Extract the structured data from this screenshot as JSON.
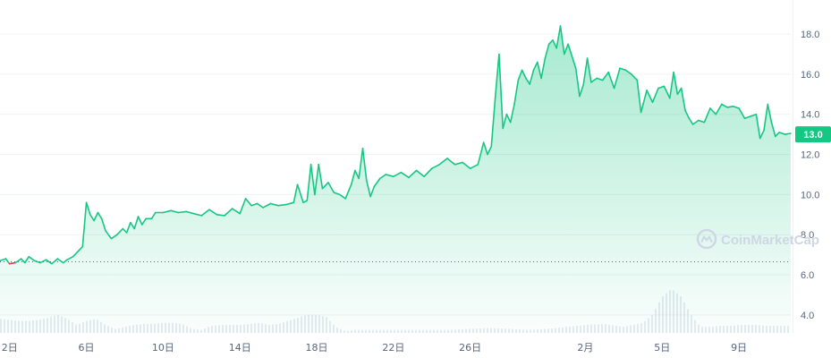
{
  "chart_data": {
    "type": "line",
    "title": "",
    "xlabel": "",
    "ylabel": "",
    "ylim": [
      3.1,
      19.7
    ],
    "y_ticks": [
      4.0,
      6.0,
      8.0,
      10.0,
      12.0,
      14.0,
      16.0,
      18.0
    ],
    "y_tick_labels": [
      "4.0",
      "6.0",
      "8.0",
      "10.0",
      "12.0",
      "14.0",
      "16.0",
      "18.0"
    ],
    "x_range": [
      1.5,
      42.7
    ],
    "x_ticks": [
      2,
      6,
      10,
      14,
      18,
      22,
      26,
      32,
      36,
      40
    ],
    "x_tick_labels": [
      "2日",
      "6日",
      "10日",
      "14日",
      "18日",
      "22日",
      "26日",
      "2月",
      "5日",
      "9日"
    ],
    "reference_price": 6.65,
    "current_price": 13.0,
    "current_price_label": "13.0",
    "colors": {
      "up": "#16c784",
      "down": "#ea3943",
      "volume": "#cfd6e4",
      "grid": "#eff2f5"
    },
    "series": [
      {
        "values": [
          [
            1.5,
            6.7
          ],
          [
            1.8,
            6.8
          ],
          [
            2.0,
            6.55
          ],
          [
            2.3,
            6.6
          ],
          [
            2.6,
            6.8
          ],
          [
            2.8,
            6.6
          ],
          [
            3.0,
            6.9
          ],
          [
            3.3,
            6.7
          ],
          [
            3.6,
            6.6
          ],
          [
            3.9,
            6.75
          ],
          [
            4.2,
            6.55
          ],
          [
            4.5,
            6.8
          ],
          [
            4.8,
            6.6
          ],
          [
            5.0,
            6.75
          ],
          [
            5.3,
            6.9
          ],
          [
            5.6,
            7.2
          ],
          [
            5.8,
            7.4
          ],
          [
            6.0,
            9.6
          ],
          [
            6.2,
            9.0
          ],
          [
            6.4,
            8.7
          ],
          [
            6.6,
            9.1
          ],
          [
            6.8,
            8.8
          ],
          [
            7.0,
            8.2
          ],
          [
            7.3,
            7.8
          ],
          [
            7.6,
            8.0
          ],
          [
            7.9,
            8.3
          ],
          [
            8.1,
            8.1
          ],
          [
            8.3,
            8.6
          ],
          [
            8.5,
            8.3
          ],
          [
            8.7,
            8.9
          ],
          [
            8.9,
            8.5
          ],
          [
            9.1,
            8.8
          ],
          [
            9.4,
            8.8
          ],
          [
            9.6,
            9.1
          ],
          [
            10.0,
            9.1
          ],
          [
            10.4,
            9.2
          ],
          [
            10.8,
            9.1
          ],
          [
            11.2,
            9.15
          ],
          [
            11.6,
            9.05
          ],
          [
            12.0,
            8.95
          ],
          [
            12.4,
            9.25
          ],
          [
            12.8,
            9.0
          ],
          [
            13.2,
            8.95
          ],
          [
            13.6,
            9.3
          ],
          [
            14.0,
            9.05
          ],
          [
            14.3,
            9.8
          ],
          [
            14.6,
            9.45
          ],
          [
            14.9,
            9.55
          ],
          [
            15.2,
            9.35
          ],
          [
            15.6,
            9.55
          ],
          [
            16.0,
            9.45
          ],
          [
            16.4,
            9.5
          ],
          [
            16.8,
            9.6
          ],
          [
            17.0,
            10.5
          ],
          [
            17.3,
            9.6
          ],
          [
            17.5,
            9.7
          ],
          [
            17.7,
            11.5
          ],
          [
            17.9,
            10.0
          ],
          [
            18.1,
            11.5
          ],
          [
            18.3,
            10.3
          ],
          [
            18.6,
            10.6
          ],
          [
            18.9,
            10.1
          ],
          [
            19.2,
            10.0
          ],
          [
            19.5,
            9.8
          ],
          [
            19.8,
            10.5
          ],
          [
            20.0,
            11.2
          ],
          [
            20.2,
            10.8
          ],
          [
            20.4,
            12.3
          ],
          [
            20.6,
            10.7
          ],
          [
            20.8,
            9.9
          ],
          [
            21.0,
            10.4
          ],
          [
            21.3,
            10.8
          ],
          [
            21.6,
            11.0
          ],
          [
            22.0,
            10.9
          ],
          [
            22.4,
            11.1
          ],
          [
            22.8,
            10.85
          ],
          [
            23.2,
            11.2
          ],
          [
            23.6,
            10.9
          ],
          [
            24.0,
            11.3
          ],
          [
            24.4,
            11.5
          ],
          [
            24.8,
            11.8
          ],
          [
            25.2,
            11.5
          ],
          [
            25.6,
            11.6
          ],
          [
            26.0,
            11.3
          ],
          [
            26.4,
            11.5
          ],
          [
            26.7,
            12.6
          ],
          [
            26.9,
            12.0
          ],
          [
            27.1,
            12.4
          ],
          [
            27.3,
            14.8
          ],
          [
            27.5,
            17.0
          ],
          [
            27.7,
            13.3
          ],
          [
            27.9,
            14.0
          ],
          [
            28.1,
            13.6
          ],
          [
            28.3,
            14.5
          ],
          [
            28.5,
            15.7
          ],
          [
            28.7,
            16.2
          ],
          [
            28.9,
            15.8
          ],
          [
            29.1,
            15.5
          ],
          [
            29.3,
            16.2
          ],
          [
            29.5,
            16.6
          ],
          [
            29.7,
            15.8
          ],
          [
            29.9,
            16.8
          ],
          [
            30.1,
            17.5
          ],
          [
            30.3,
            17.7
          ],
          [
            30.5,
            17.3
          ],
          [
            30.7,
            18.4
          ],
          [
            30.9,
            17.0
          ],
          [
            31.1,
            17.5
          ],
          [
            31.3,
            16.9
          ],
          [
            31.5,
            16.3
          ],
          [
            31.7,
            14.9
          ],
          [
            31.9,
            15.5
          ],
          [
            32.1,
            16.8
          ],
          [
            32.3,
            15.6
          ],
          [
            32.6,
            15.8
          ],
          [
            32.9,
            15.7
          ],
          [
            33.2,
            16.1
          ],
          [
            33.5,
            15.3
          ],
          [
            33.8,
            16.3
          ],
          [
            34.1,
            16.2
          ],
          [
            34.4,
            16.0
          ],
          [
            34.7,
            15.7
          ],
          [
            34.9,
            14.1
          ],
          [
            35.2,
            15.2
          ],
          [
            35.5,
            14.6
          ],
          [
            35.8,
            15.3
          ],
          [
            36.1,
            15.4
          ],
          [
            36.4,
            14.8
          ],
          [
            36.6,
            16.1
          ],
          [
            36.8,
            15.0
          ],
          [
            37.0,
            15.3
          ],
          [
            37.2,
            14.2
          ],
          [
            37.4,
            13.8
          ],
          [
            37.6,
            13.5
          ],
          [
            37.9,
            13.7
          ],
          [
            38.2,
            13.6
          ],
          [
            38.5,
            14.3
          ],
          [
            38.8,
            14.0
          ],
          [
            39.1,
            14.5
          ],
          [
            39.4,
            14.35
          ],
          [
            39.7,
            14.4
          ],
          [
            40.0,
            14.3
          ],
          [
            40.3,
            13.8
          ],
          [
            40.6,
            13.9
          ],
          [
            40.9,
            14.0
          ],
          [
            41.1,
            12.8
          ],
          [
            41.3,
            13.2
          ],
          [
            41.5,
            14.5
          ],
          [
            41.7,
            13.6
          ],
          [
            41.9,
            12.9
          ],
          [
            42.1,
            13.1
          ],
          [
            42.4,
            13.0
          ],
          [
            42.7,
            13.05
          ]
        ]
      }
    ],
    "volume": [
      [
        1.5,
        3.8
      ],
      [
        2.0,
        3.75
      ],
      [
        2.5,
        3.7
      ],
      [
        3.0,
        3.7
      ],
      [
        3.5,
        3.75
      ],
      [
        4.0,
        3.85
      ],
      [
        4.5,
        4.0
      ],
      [
        5.0,
        3.8
      ],
      [
        5.5,
        3.5
      ],
      [
        6.0,
        3.7
      ],
      [
        6.5,
        3.8
      ],
      [
        7.0,
        3.5
      ],
      [
        7.5,
        3.3
      ],
      [
        8.0,
        3.4
      ],
      [
        8.5,
        3.5
      ],
      [
        9.0,
        3.55
      ],
      [
        9.5,
        3.55
      ],
      [
        10.0,
        3.6
      ],
      [
        10.5,
        3.6
      ],
      [
        11.0,
        3.55
      ],
      [
        11.5,
        3.3
      ],
      [
        12.0,
        3.25
      ],
      [
        12.5,
        3.45
      ],
      [
        13.0,
        3.5
      ],
      [
        13.5,
        3.5
      ],
      [
        14.0,
        3.5
      ],
      [
        14.5,
        3.55
      ],
      [
        15.0,
        3.6
      ],
      [
        15.5,
        3.5
      ],
      [
        16.0,
        3.55
      ],
      [
        16.5,
        3.7
      ],
      [
        17.0,
        3.85
      ],
      [
        17.5,
        4.0
      ],
      [
        18.0,
        4.0
      ],
      [
        18.5,
        3.9
      ],
      [
        19.0,
        3.4
      ],
      [
        19.5,
        3.2
      ],
      [
        20.0,
        3.25
      ],
      [
        21.0,
        3.25
      ],
      [
        22.0,
        3.25
      ],
      [
        23.0,
        3.25
      ],
      [
        24.0,
        3.25
      ],
      [
        25.0,
        3.25
      ],
      [
        26.0,
        3.3
      ],
      [
        27.0,
        3.35
      ],
      [
        28.0,
        3.3
      ],
      [
        29.0,
        3.25
      ],
      [
        30.0,
        3.3
      ],
      [
        31.0,
        3.4
      ],
      [
        32.0,
        3.5
      ],
      [
        33.0,
        3.55
      ],
      [
        34.0,
        3.4
      ],
      [
        34.5,
        3.5
      ],
      [
        35.0,
        3.6
      ],
      [
        35.5,
        4.0
      ],
      [
        36.0,
        4.9
      ],
      [
        36.5,
        5.3
      ],
      [
        37.0,
        4.9
      ],
      [
        37.5,
        4.0
      ],
      [
        38.0,
        3.4
      ],
      [
        38.5,
        3.4
      ],
      [
        39.0,
        3.45
      ],
      [
        39.5,
        3.45
      ],
      [
        40.0,
        3.5
      ],
      [
        40.5,
        3.5
      ],
      [
        41.0,
        3.5
      ],
      [
        41.5,
        3.45
      ],
      [
        42.0,
        3.45
      ],
      [
        42.7,
        3.45
      ]
    ]
  },
  "watermark": {
    "text": "CoinMarketCap"
  }
}
